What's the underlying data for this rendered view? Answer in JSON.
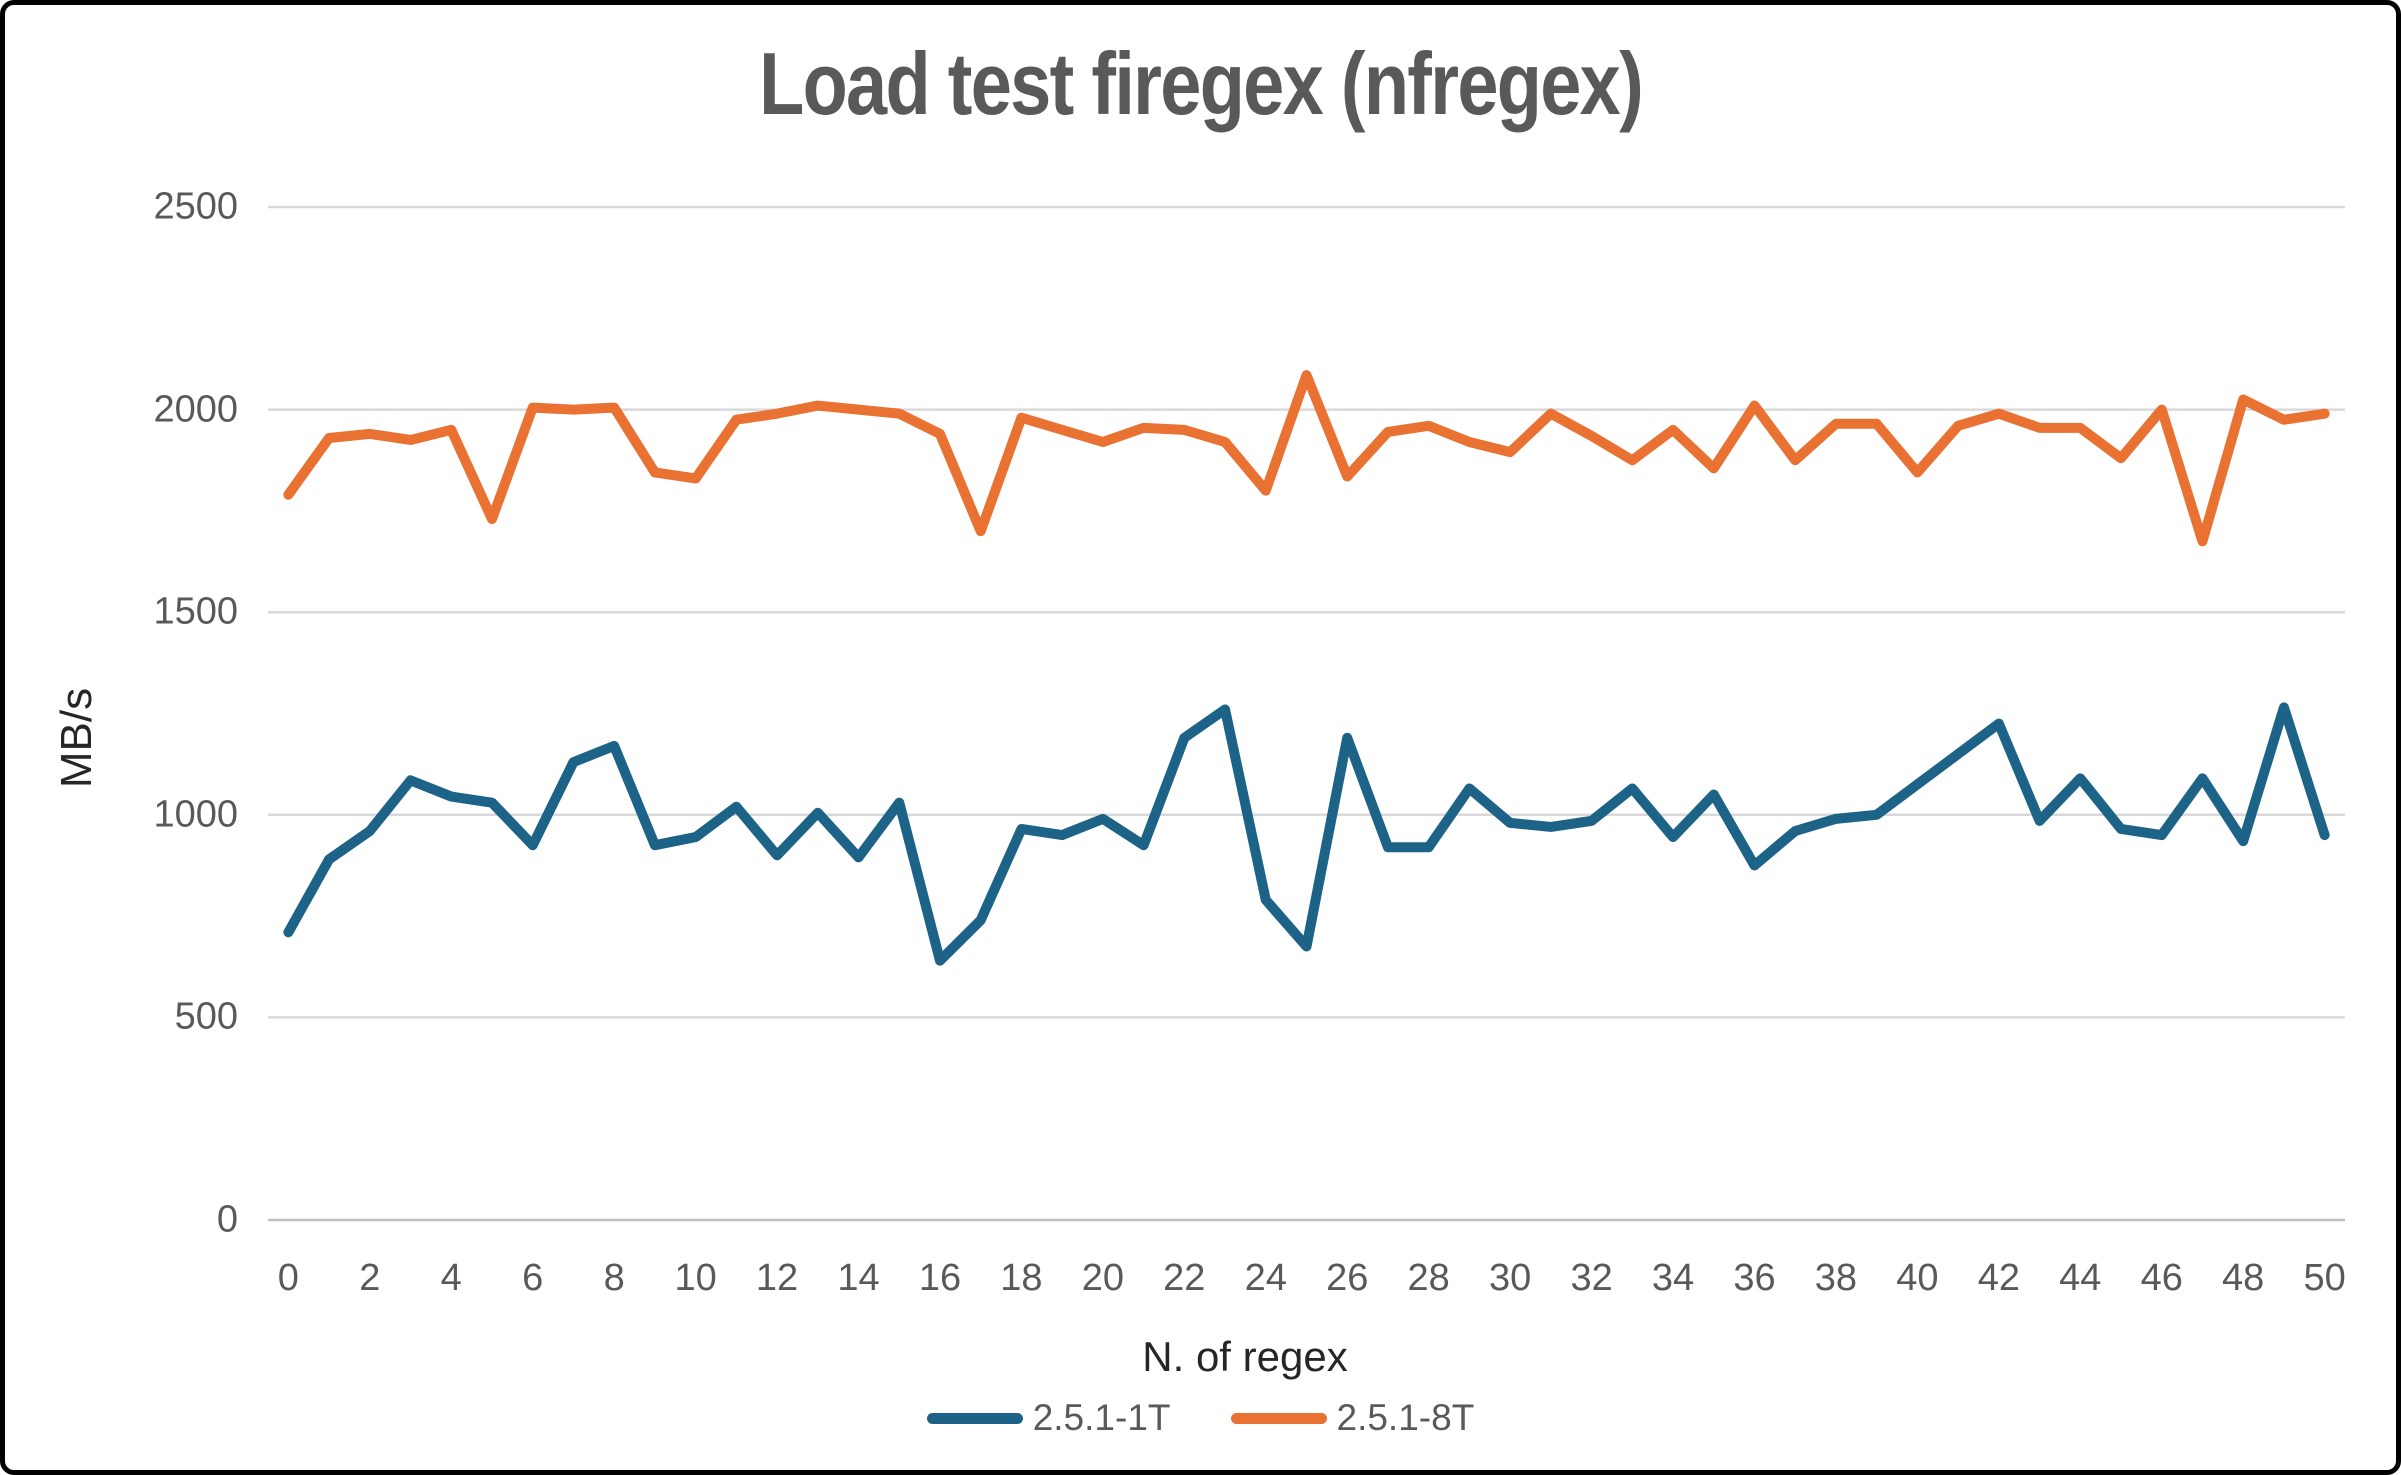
{
  "title": "Load test firegex (nfregex)",
  "chart_data": {
    "type": "line",
    "title": "Load test firegex (nfregex)",
    "xlabel": "N. of regex",
    "ylabel": "MB/s",
    "x": [
      0,
      1,
      2,
      3,
      4,
      5,
      6,
      7,
      8,
      9,
      10,
      11,
      12,
      13,
      14,
      15,
      16,
      17,
      18,
      19,
      20,
      21,
      22,
      23,
      24,
      25,
      26,
      27,
      28,
      29,
      30,
      31,
      32,
      33,
      34,
      35,
      36,
      37,
      38,
      39,
      40,
      41,
      42,
      43,
      44,
      45,
      46,
      47,
      48,
      49,
      50
    ],
    "x_tick_labels": [
      "0",
      "2",
      "4",
      "6",
      "8",
      "10",
      "12",
      "14",
      "16",
      "18",
      "20",
      "22",
      "24",
      "26",
      "28",
      "30",
      "32",
      "34",
      "36",
      "38",
      "40",
      "42",
      "44",
      "46",
      "48",
      "50"
    ],
    "y_ticks": [
      0,
      500,
      1000,
      1500,
      2000,
      2500
    ],
    "ylim": [
      0,
      2500
    ],
    "grid": true,
    "legend_position": "bottom",
    "colors": {
      "gridline": "#D9D9D9",
      "axis_line": "#BFBFBF",
      "tick_text": "#595959",
      "title_text": "#595959",
      "axis_title_text": "#262626"
    },
    "series": [
      {
        "name": "2.5.1-1T",
        "color": "#1C6387",
        "values": [
          710,
          890,
          960,
          1085,
          1045,
          1030,
          925,
          1130,
          1170,
          925,
          945,
          1020,
          900,
          1005,
          895,
          1030,
          640,
          740,
          965,
          950,
          990,
          925,
          1190,
          1260,
          790,
          675,
          1190,
          920,
          920,
          1065,
          980,
          970,
          985,
          1065,
          945,
          1050,
          875,
          960,
          990,
          1000,
          1075,
          1150,
          1225,
          985,
          1090,
          965,
          950,
          1090,
          935,
          1265,
          950
        ]
      },
      {
        "name": "2.5.1-8T",
        "color": "#E97132",
        "values": [
          1790,
          1930,
          1940,
          1925,
          1950,
          1730,
          2005,
          2000,
          2005,
          1845,
          1830,
          1975,
          1990,
          2010,
          2000,
          1990,
          1940,
          1700,
          1980,
          1950,
          1920,
          1955,
          1950,
          1920,
          1800,
          2085,
          1835,
          1945,
          1960,
          1920,
          1895,
          1990,
          1935,
          1875,
          1950,
          1855,
          2010,
          1875,
          1965,
          1965,
          1845,
          1960,
          1990,
          1955,
          1955,
          1880,
          2000,
          1675,
          2025,
          1975,
          1990
        ]
      }
    ]
  }
}
